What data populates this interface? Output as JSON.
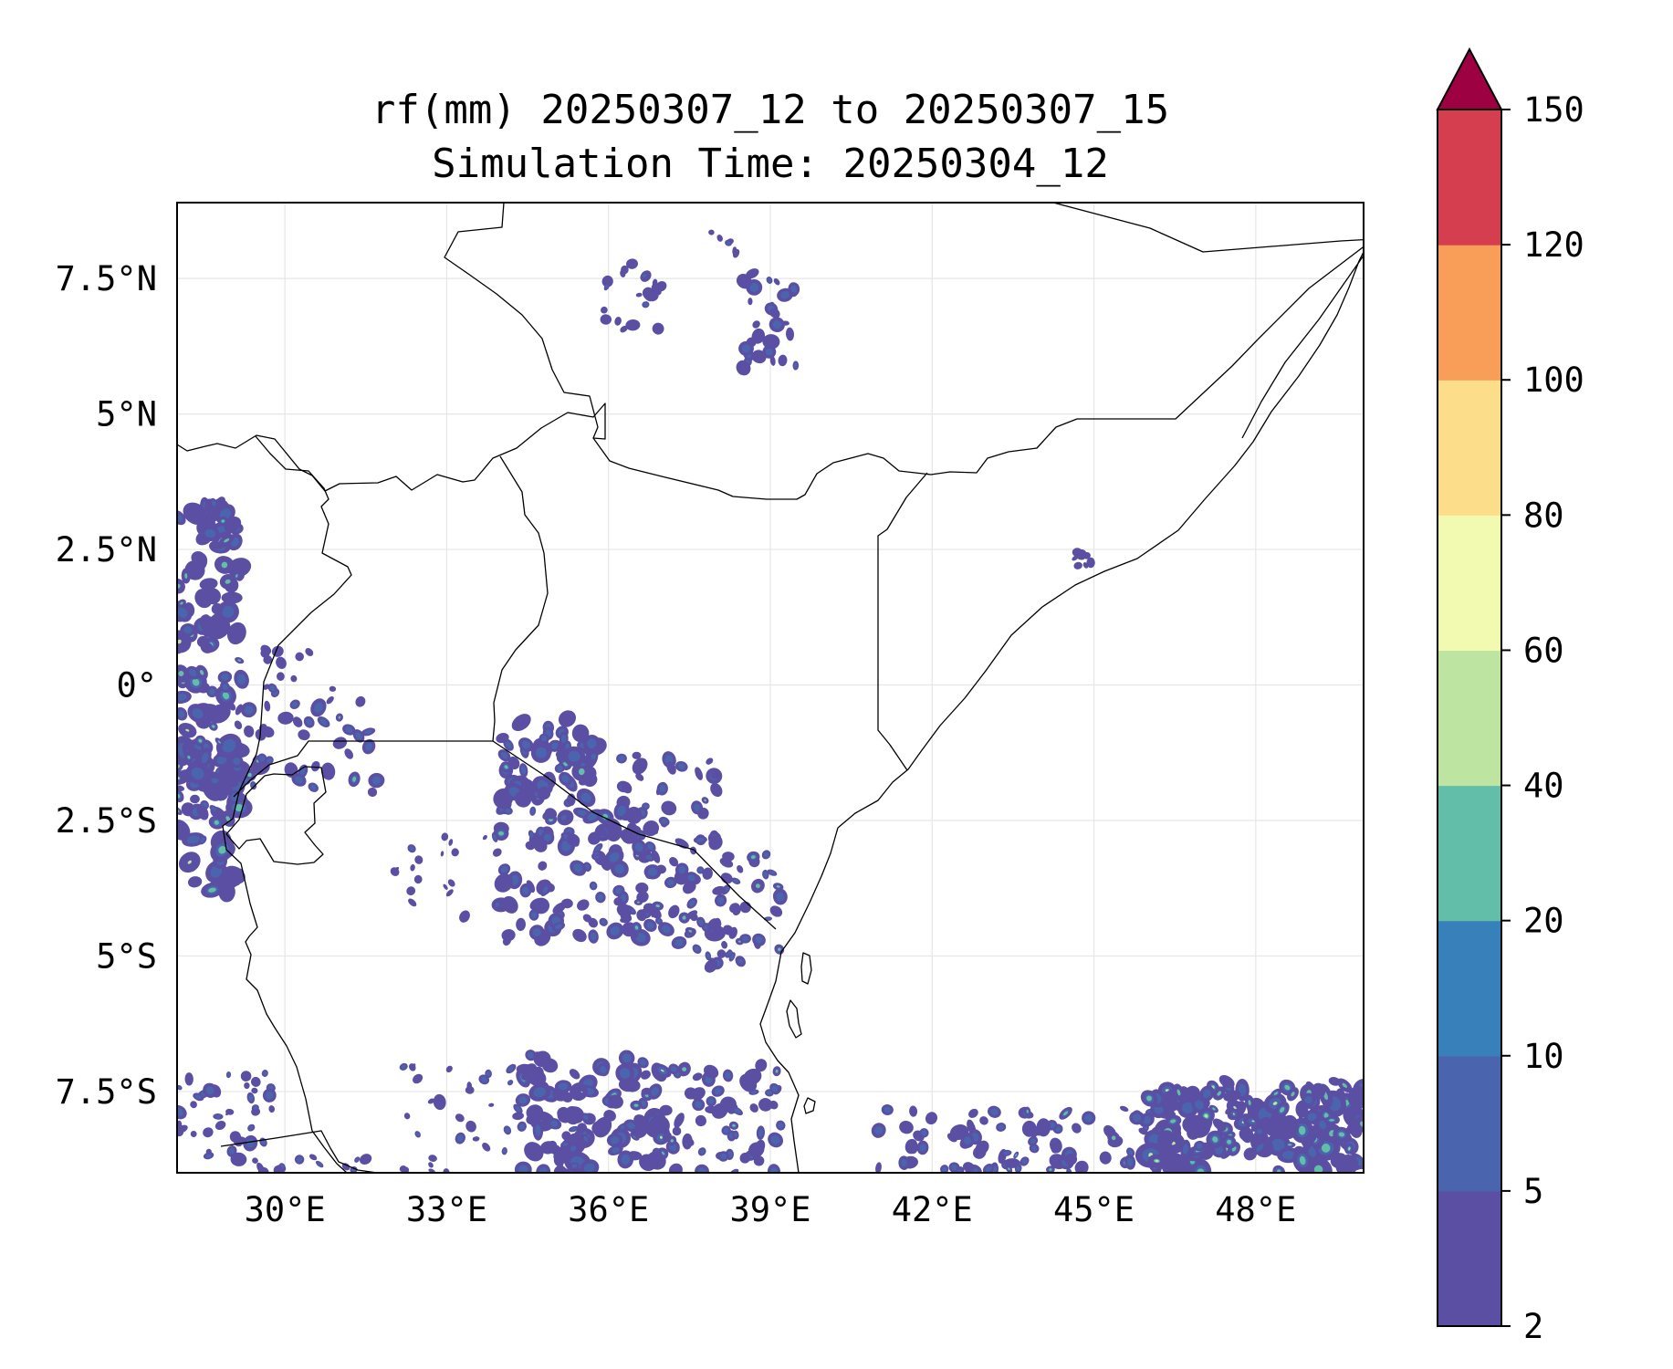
{
  "title": {
    "line1": "rf(mm) 20250307_12 to 20250307_15",
    "line2": "Simulation Time: 20250304_12"
  },
  "map": {
    "lon_range": [
      28,
      50
    ],
    "lat_range": [
      -9,
      8.9
    ],
    "x_ticks": [
      {
        "value": 30,
        "label": "30°E"
      },
      {
        "value": 33,
        "label": "33°E"
      },
      {
        "value": 36,
        "label": "36°E"
      },
      {
        "value": 39,
        "label": "39°E"
      },
      {
        "value": 42,
        "label": "42°E"
      },
      {
        "value": 45,
        "label": "45°E"
      },
      {
        "value": 48,
        "label": "48°E"
      }
    ],
    "y_ticks": [
      {
        "value": 7.5,
        "label": "7.5°N"
      },
      {
        "value": 5,
        "label": "5°N"
      },
      {
        "value": 2.5,
        "label": "2.5°N"
      },
      {
        "value": 0,
        "label": "0°"
      },
      {
        "value": -2.5,
        "label": "2.5°S"
      },
      {
        "value": -5,
        "label": "5°S"
      },
      {
        "value": -7.5,
        "label": "7.5°S"
      }
    ]
  },
  "colorbar": {
    "levels": [
      2,
      5,
      10,
      20,
      40,
      60,
      80,
      100,
      120,
      150
    ],
    "labels": [
      "2",
      "5",
      "10",
      "20",
      "40",
      "60",
      "80",
      "100",
      "120",
      "150"
    ],
    "colors": [
      "#5a4fa2",
      "#4a65ae",
      "#3880b9",
      "#62bda9",
      "#bde4a0",
      "#f2f9b0",
      "#fcde8a",
      "#f99e59",
      "#d53e4f"
    ],
    "extend_color": "#9e0142"
  },
  "rain_colors": {
    "light": "#5a4fa2",
    "moderate": "#4a65ae",
    "heavy": "#62bda9",
    "very_heavy": "#bde4a0"
  }
}
